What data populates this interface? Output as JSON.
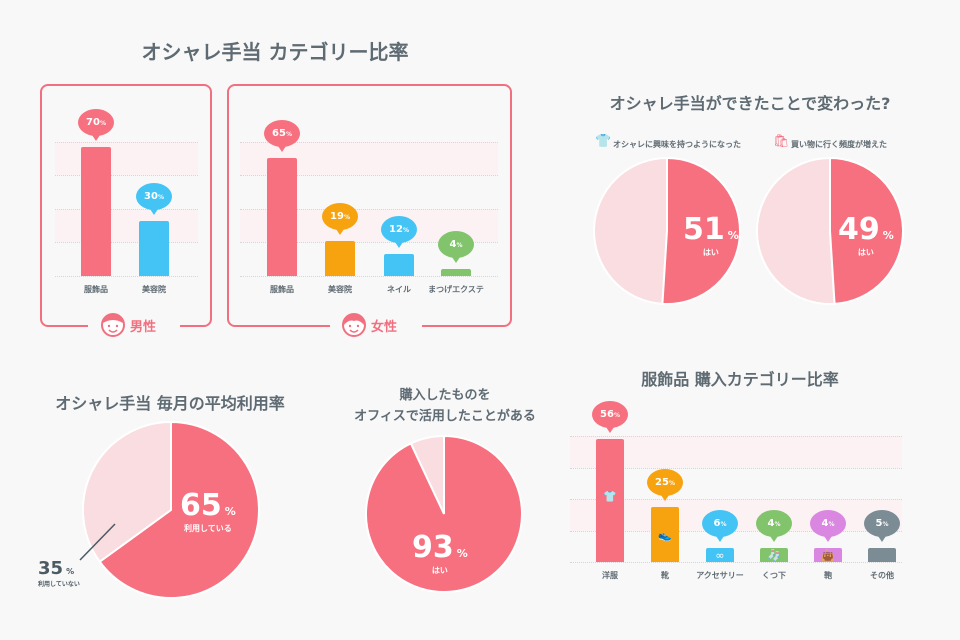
{
  "title_category": "オシャレ手当 カテゴリー比率",
  "title_changes": "オシャレ手当ができたことで変わった?",
  "title_usage": "オシャレ手当 毎月の平均利用率",
  "title_office": [
    "購入したものを",
    "オフィスで活用したことがある"
  ],
  "title_purchase": "服飾品 購入カテゴリー比率",
  "colors": {
    "pink": "#f7707f",
    "light": "#f9dde0",
    "blue": "#44c4f5",
    "orange": "#f7a20f",
    "green": "#82c46b",
    "purple": "#d987e0",
    "gray": "#7b8c94",
    "text": "#5f6b73"
  },
  "chart_data": [
    {
      "type": "bar",
      "group_label": "男性",
      "group_icon": "boy-face-icon",
      "categories": [
        "服飾品",
        "美容院"
      ],
      "values": [
        70,
        30
      ],
      "unit": "%",
      "colors": [
        "#f7707f",
        "#44c4f5"
      ],
      "grid": true
    },
    {
      "type": "bar",
      "group_label": "女性",
      "group_icon": "girl-face-icon",
      "categories": [
        "服飾品",
        "美容院",
        "ネイル",
        "まつげエクステ"
      ],
      "values": [
        65,
        19,
        12,
        4
      ],
      "unit": "%",
      "colors": [
        "#f7707f",
        "#f7a20f",
        "#44c4f5",
        "#82c46b"
      ],
      "grid": true
    },
    {
      "type": "pie",
      "question": "オシャレに興味を持つようになった",
      "icon": "shirt-icon",
      "value": 51,
      "unit": "%",
      "label": "はい"
    },
    {
      "type": "pie",
      "question": "買い物に行く頻度が増えた",
      "icon": "shopping-bag-icon",
      "value": 49,
      "unit": "%",
      "label": "はい"
    },
    {
      "type": "pie",
      "value": 65,
      "unit": "%",
      "label": "利用している",
      "rest_value": 35,
      "rest_label": "利用していない"
    },
    {
      "type": "pie",
      "value": 93,
      "unit": "%",
      "label": "はい"
    },
    {
      "type": "bar",
      "categories": [
        "洋服",
        "靴",
        "アクセサリー",
        "くつ下",
        "鞄",
        "その他"
      ],
      "values": [
        56,
        25,
        6,
        4,
        4,
        5
      ],
      "unit": "%",
      "colors": [
        "#f7707f",
        "#f7a20f",
        "#44c4f5",
        "#82c46b",
        "#d987e0",
        "#7b8c94"
      ],
      "icons": [
        "clothes-icon",
        "shoe-icon",
        "accessory-icon",
        "socks-icon",
        "bag-icon",
        ""
      ],
      "grid": true
    }
  ]
}
